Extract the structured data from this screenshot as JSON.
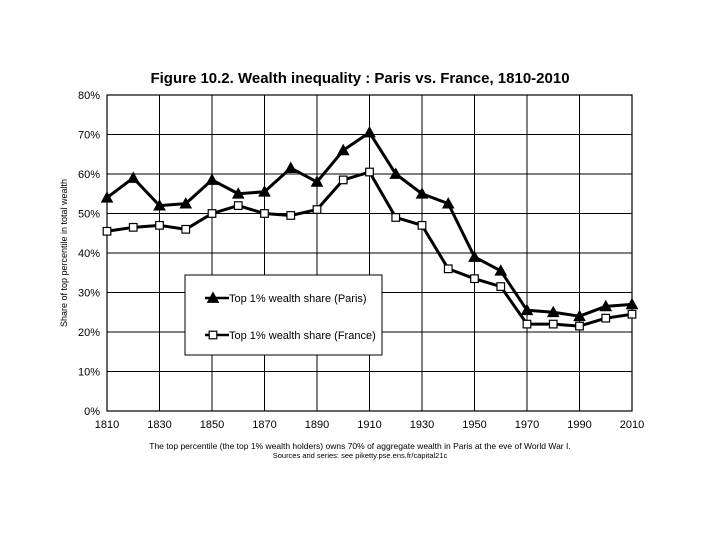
{
  "chart_data": {
    "type": "line",
    "title": "Figure 10.2. Wealth inequality : Paris vs. France, 1810-2010",
    "ylabel": "Share of top percentile in total wealth",
    "xlabel": "",
    "x": [
      1810,
      1820,
      1830,
      1840,
      1850,
      1860,
      1870,
      1880,
      1890,
      1900,
      1910,
      1920,
      1930,
      1940,
      1950,
      1960,
      1970,
      1980,
      1990,
      2000,
      2010
    ],
    "xticks": [
      "1810",
      "1830",
      "1850",
      "1870",
      "1890",
      "1910",
      "1930",
      "1950",
      "1970",
      "1990",
      "2010"
    ],
    "xtick_values": [
      1810,
      1830,
      1850,
      1870,
      1890,
      1910,
      1930,
      1950,
      1970,
      1990,
      2010
    ],
    "xlim": [
      1810,
      2010
    ],
    "ylim": [
      0,
      0.8
    ],
    "yticks": [
      "0%",
      "10%",
      "20%",
      "30%",
      "40%",
      "50%",
      "60%",
      "70%",
      "80%"
    ],
    "ytick_values": [
      0,
      0.1,
      0.2,
      0.3,
      0.4,
      0.5,
      0.6,
      0.7,
      0.8
    ],
    "grid": true,
    "legend_position": "lower-left",
    "series": [
      {
        "name": "Top 1% wealth share (Paris)",
        "marker": "triangle",
        "color": "#000000",
        "values": [
          0.54,
          0.59,
          0.52,
          0.525,
          0.585,
          0.55,
          0.555,
          0.615,
          0.58,
          0.66,
          0.705,
          0.6,
          0.55,
          0.525,
          0.39,
          0.355,
          0.255,
          0.25,
          0.24,
          0.265,
          0.27
        ]
      },
      {
        "name": "Top 1% wealth share (France)",
        "marker": "square",
        "color": "#000000",
        "values": [
          0.455,
          0.465,
          0.47,
          0.46,
          0.5,
          0.52,
          0.5,
          0.495,
          0.51,
          0.585,
          0.605,
          0.49,
          0.47,
          0.36,
          0.335,
          0.315,
          0.22,
          0.22,
          0.215,
          0.235,
          0.245
        ]
      }
    ],
    "caption": "The top percentile (the top 1% wealth holders) owns 70% of aggregate wealth in Paris at the eve of World War I.",
    "source": "Sources and series: see piketty.pse.ens.fr/capital21c"
  }
}
